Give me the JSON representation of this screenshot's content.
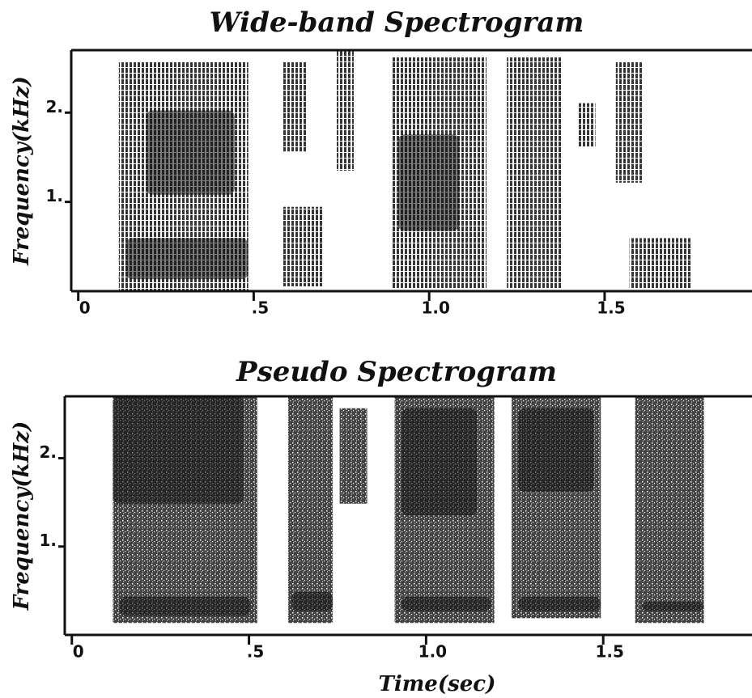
{
  "chart_data": [
    {
      "type": "spectrogram",
      "title": "Wide-band Spectrogram",
      "ylabel": "Frequency(kHz)",
      "color": "#111111",
      "xlim": [
        -0.02,
        1.92
      ],
      "ylim": [
        0,
        2.7
      ],
      "xticks": [
        0,
        {
          "value": 0.5,
          "label": ".5"
        },
        {
          "value": 1,
          "label": "1.0"
        },
        {
          "value": 1.5,
          "label": "1.5"
        }
      ],
      "yticks": [
        {
          "value": 1,
          "label": "1."
        },
        {
          "value": 2,
          "label": "2."
        }
      ]
    },
    {
      "type": "spectrogram",
      "title": "Pseudo Spectrogram",
      "ylabel": "Frequency(kHz)",
      "xlabel": "Time(sec)",
      "color": "#111111",
      "xlim": [
        -0.02,
        1.92
      ],
      "ylim": [
        0,
        2.7
      ],
      "xticks": [
        0,
        {
          "value": 0.5,
          "label": ".5"
        },
        {
          "value": 1,
          "label": "1.0"
        },
        {
          "value": 1.5,
          "label": "1.5"
        }
      ],
      "yticks": [
        {
          "value": 1,
          "label": "1."
        },
        {
          "value": 2,
          "label": "2."
        }
      ]
    }
  ]
}
